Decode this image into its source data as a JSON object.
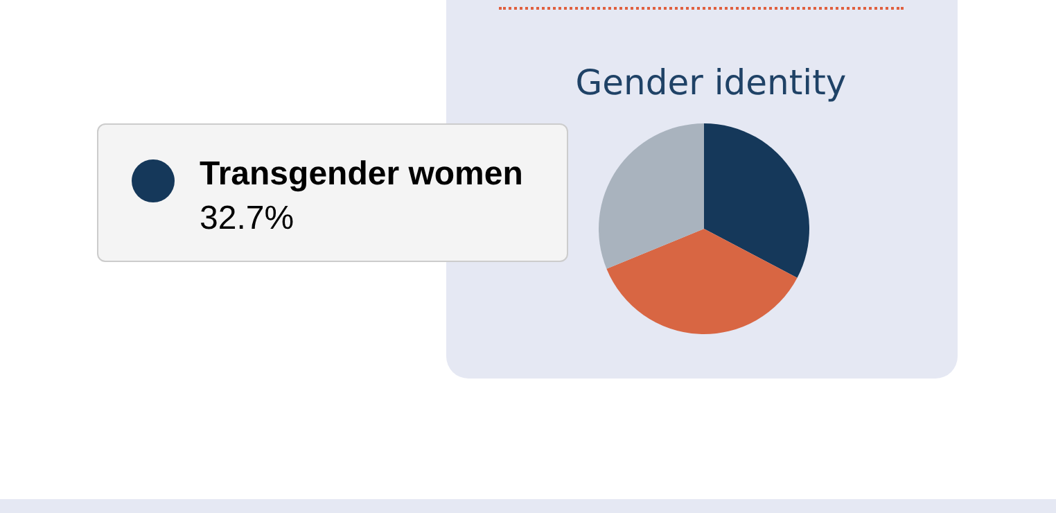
{
  "chart_data": {
    "type": "pie",
    "title": "Gender identity",
    "categories": [
      "Transgender women",
      null,
      null
    ],
    "values": [
      32.7,
      36.1,
      31.2
    ],
    "colors": [
      "#15385a",
      "#d86643",
      "#a9b3be"
    ],
    "value_labels": [
      "32.7%",
      null,
      null
    ],
    "legend": "left"
  }
}
